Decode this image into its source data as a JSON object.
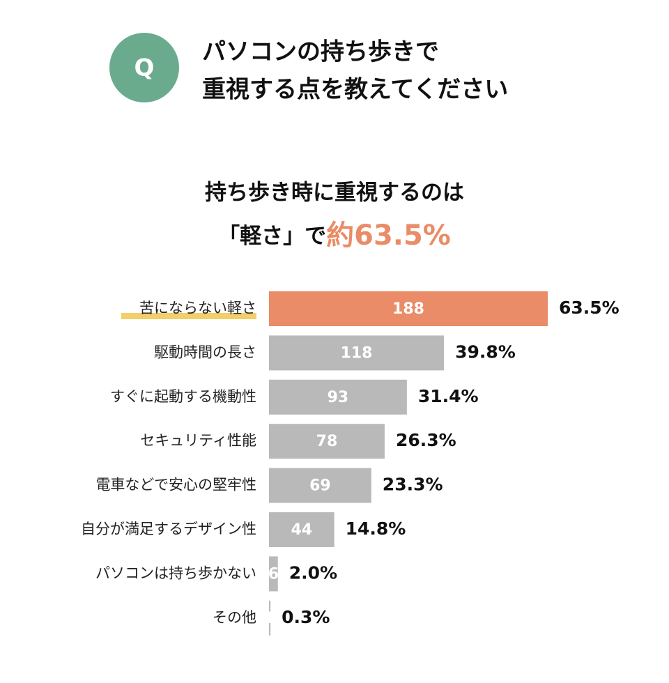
{
  "question": {
    "badge": "Q",
    "lines": [
      "パソコンの持ち歩きで",
      "重視する点を教えてください"
    ]
  },
  "chart_data": {
    "type": "hbar",
    "headline": {
      "line1": "持ち歩き時に重視するのは",
      "line2": "「軽さ」で",
      "highlight": "約63.5%",
      "highlight_color": "#e98c67"
    },
    "categories": [
      "苦にならない軽さ",
      "駆動時間の長さ",
      "すぐに起動する機動性",
      "セキュリティ性能",
      "電車などで安心の堅牢性",
      "自分が満足するデザイン性",
      "パソコンは持ち歩かない",
      "その他"
    ],
    "values": [
      188,
      118,
      93,
      78,
      69,
      44,
      6,
      1
    ],
    "percentage_labels": [
      "63.5%",
      "39.8%",
      "31.4%",
      "26.3%",
      "23.3%",
      "14.8%",
      "2.0%",
      "0.3%"
    ],
    "colors": [
      "#e98c67",
      "#b9b9b9",
      "#b9b9b9",
      "#b9b9b9",
      "#b9b9b9",
      "#b9b9b9",
      "#b9b9b9",
      "#b9b9b9"
    ],
    "underline_color": "#f2cf6a"
  }
}
